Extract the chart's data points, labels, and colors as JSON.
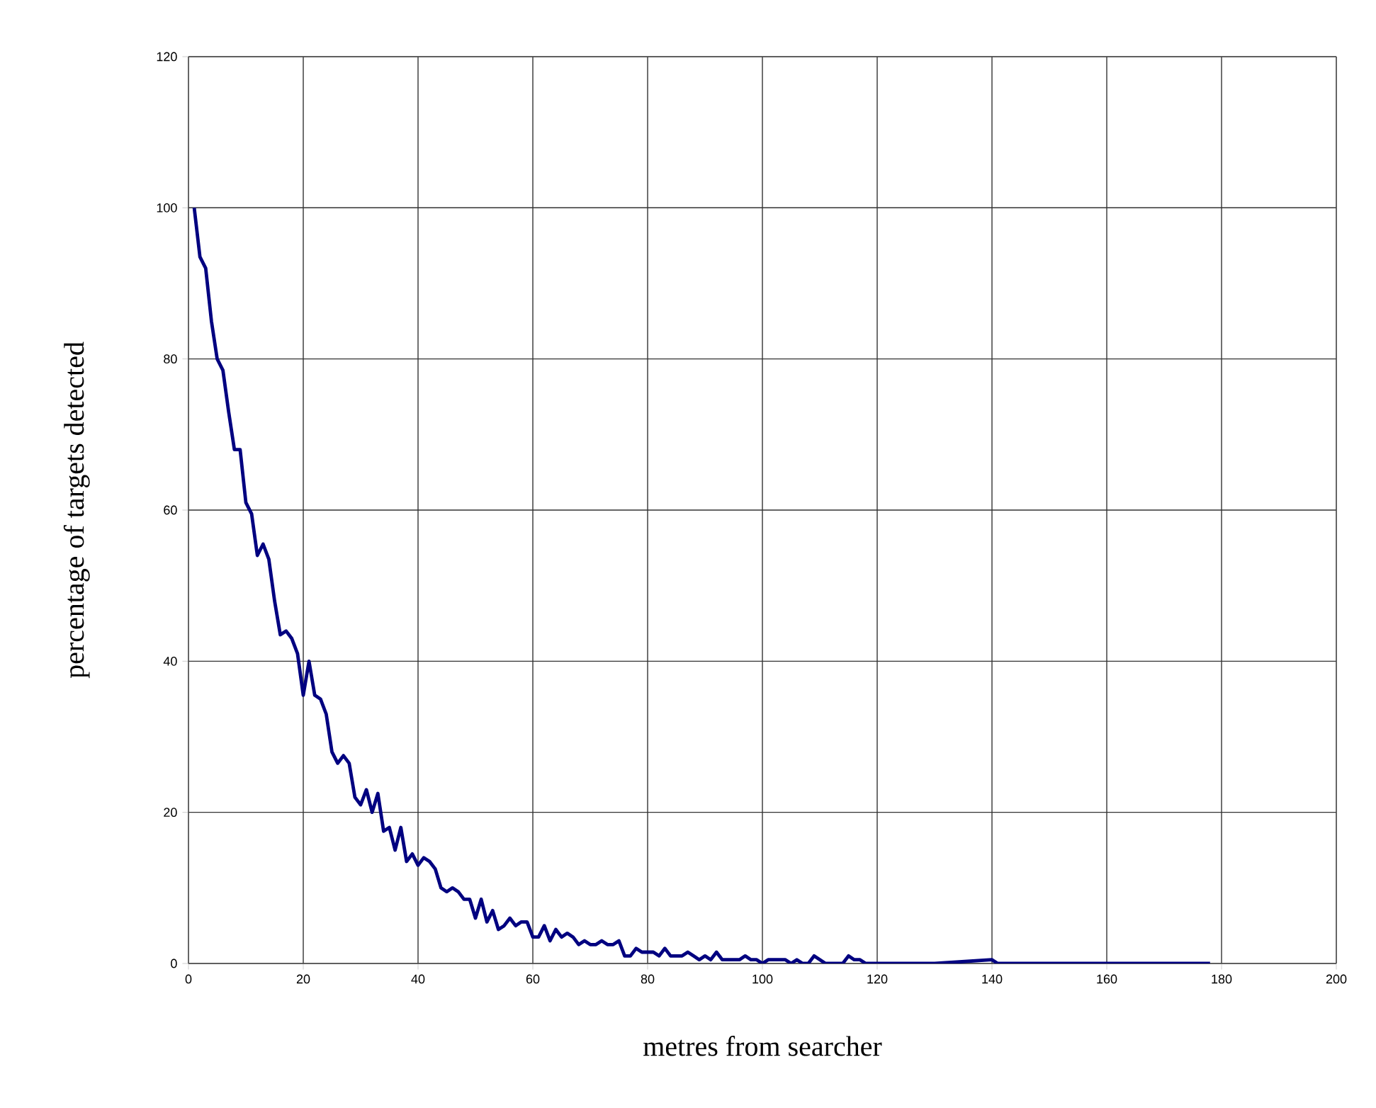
{
  "chart_data": {
    "type": "line",
    "xlabel": "metres from searcher",
    "ylabel": "percentage of targets detected",
    "xlim": [
      0,
      200
    ],
    "xticks": [
      0,
      20,
      40,
      60,
      80,
      100,
      120,
      140,
      160,
      180,
      200
    ],
    "ylim": [
      0,
      120
    ],
    "yticks": [
      0,
      20,
      40,
      60,
      80,
      100,
      120
    ],
    "grid": true,
    "marker": "none",
    "line_style": "solid",
    "x": [
      1,
      2,
      3,
      4,
      5,
      6,
      7,
      8,
      9,
      10,
      11,
      12,
      13,
      14,
      15,
      16,
      17,
      18,
      19,
      20,
      21,
      22,
      23,
      24,
      25,
      26,
      27,
      28,
      29,
      30,
      31,
      32,
      33,
      34,
      35,
      36,
      37,
      38,
      39,
      40,
      41,
      42,
      43,
      44,
      45,
      46,
      47,
      48,
      49,
      50,
      51,
      52,
      53,
      54,
      55,
      56,
      57,
      58,
      59,
      60,
      61,
      62,
      63,
      64,
      65,
      66,
      67,
      68,
      69,
      70,
      71,
      72,
      73,
      74,
      75,
      76,
      77,
      78,
      79,
      80,
      81,
      82,
      83,
      84,
      85,
      86,
      87,
      88,
      89,
      90,
      91,
      92,
      93,
      94,
      95,
      96,
      97,
      98,
      99,
      100,
      101,
      102,
      103,
      104,
      105,
      106,
      107,
      108,
      109,
      110,
      111,
      112,
      113,
      114,
      115,
      116,
      117,
      118,
      120,
      130,
      140,
      141,
      150,
      160,
      170,
      178
    ],
    "series": [
      {
        "color": "#000080",
        "values": [
          100,
          93.5,
          92,
          85,
          80,
          78.5,
          73,
          68,
          68,
          61,
          59.5,
          54,
          55.5,
          53.5,
          48,
          43.5,
          44,
          43,
          41,
          35.5,
          40,
          35.5,
          35,
          33,
          28,
          26.5,
          27.5,
          26.5,
          22,
          21,
          23,
          20,
          22.5,
          17.5,
          18,
          15,
          18,
          13.5,
          14.5,
          13,
          14,
          13.5,
          12.5,
          10,
          9.5,
          10,
          9.5,
          8.5,
          8.5,
          6,
          8.5,
          5.5,
          7,
          4.5,
          5,
          6,
          5,
          5.5,
          5.5,
          3.5,
          3.5,
          5,
          3,
          4.5,
          3.5,
          4,
          3.5,
          2.5,
          3,
          2.5,
          2.5,
          3,
          2.5,
          2.5,
          3,
          1,
          1,
          2,
          1.5,
          1.5,
          1.5,
          1,
          2,
          1,
          1,
          1,
          1.5,
          1,
          0.5,
          1,
          0.5,
          1.5,
          0.5,
          0.5,
          0.5,
          0.5,
          1,
          0.5,
          0.5,
          0,
          0.5,
          0.5,
          0.5,
          0.5,
          0,
          0.5,
          0,
          0,
          1,
          0.5,
          0,
          0,
          0,
          0,
          1,
          0.5,
          0.5,
          0,
          0,
          0,
          0.5,
          0,
          0,
          0,
          0,
          0
        ]
      }
    ]
  }
}
